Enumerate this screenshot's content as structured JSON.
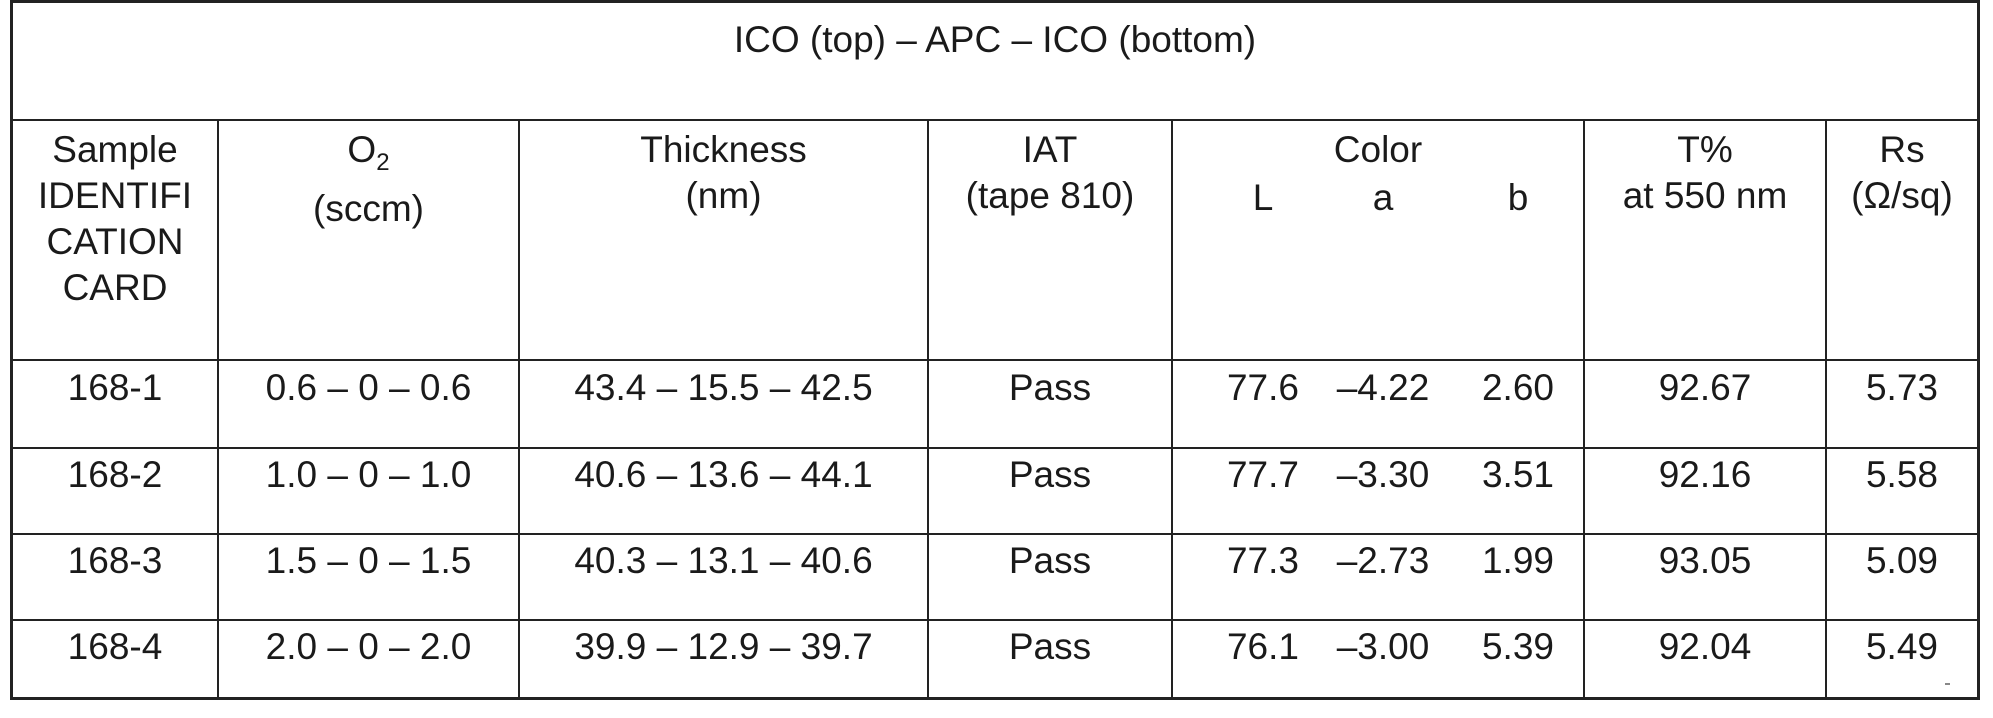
{
  "table": {
    "title": "ICO (top) – APC – ICO (bottom)",
    "headers": {
      "sample": [
        "Sample",
        "IDENTIFI",
        "CATION",
        "CARD"
      ],
      "o2_main": "O",
      "o2_sub": "2",
      "o2_unit": "(sccm)",
      "thickness": [
        "Thickness",
        "(nm)"
      ],
      "iat": [
        "IAT",
        "(tape 810)"
      ],
      "color": "Color",
      "color_l": "L",
      "color_a": "a",
      "color_b": "b",
      "transmission": [
        "T%",
        "at 550 nm"
      ],
      "rs": [
        "Rs",
        "(Ω/sq)"
      ]
    },
    "rows": [
      {
        "sample": "168-1",
        "o2": "0.6 – 0 – 0.6",
        "thickness": "43.4 – 15.5 – 42.5",
        "iat": "Pass",
        "L": "77.6",
        "a": "–4.22",
        "b": "2.60",
        "t": "92.67",
        "rs": "5.73"
      },
      {
        "sample": "168-2",
        "o2": "1.0 – 0 – 1.0",
        "thickness": "40.6 – 13.6 – 44.1",
        "iat": "Pass",
        "L": "77.7",
        "a": "–3.30",
        "b": "3.51",
        "t": "92.16",
        "rs": "5.58"
      },
      {
        "sample": "168-3",
        "o2": "1.5 – 0 – 1.5",
        "thickness": "40.3 – 13.1 – 40.6",
        "iat": "Pass",
        "L": "77.3",
        "a": "–2.73",
        "b": "1.99",
        "t": "93.05",
        "rs": "5.09"
      },
      {
        "sample": "168-4",
        "o2": "2.0 – 0 – 2.0",
        "thickness": "39.9 – 12.9 – 39.7",
        "iat": "Pass",
        "L": "76.1",
        "a": "–3.00",
        "b": "5.39",
        "t": "92.04",
        "rs": "5.49"
      }
    ]
  }
}
